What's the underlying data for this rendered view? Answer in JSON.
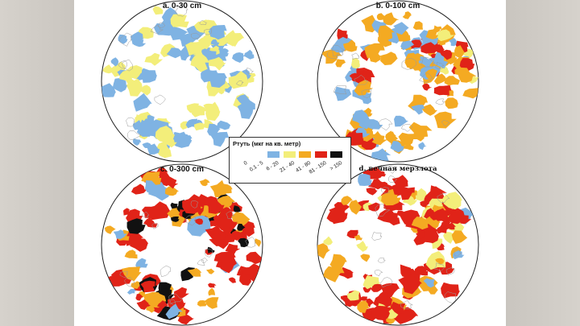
{
  "legend": {
    "title": "Ртуть (мкг на кв. метр)",
    "classes": [
      {
        "label": "0",
        "color": "#ffffff"
      },
      {
        "label": "0.1 - 5",
        "color": "#ffffff"
      },
      {
        "label": "6 - 20",
        "color": "#7fb3e3"
      },
      {
        "label": "21 - 40",
        "color": "#f3ee7a"
      },
      {
        "label": "41 - 80",
        "color": "#f4aa22"
      },
      {
        "label": "81 - 150",
        "color": "#e02318"
      },
      {
        "label": "> 150",
        "color": "#111111"
      }
    ]
  },
  "panels": [
    {
      "label": "a. 0-30 cm",
      "fill_colors": [
        "#7fb3e3",
        "#f3ee7a"
      ]
    },
    {
      "label": "b. 0-100 cm",
      "fill_colors": [
        "#f4aa22",
        "#7fb3e3",
        "#e02318",
        "#f3ee7a"
      ]
    },
    {
      "label": "c. 0-300 cm",
      "fill_colors": [
        "#e02318",
        "#f4aa22",
        "#111111",
        "#7fb3e3"
      ]
    },
    {
      "label": "d. вечная мерзлота",
      "fill_colors": [
        "#e02318",
        "#f4aa22",
        "#f3ee7a",
        "#7fb3e3"
      ]
    }
  ]
}
